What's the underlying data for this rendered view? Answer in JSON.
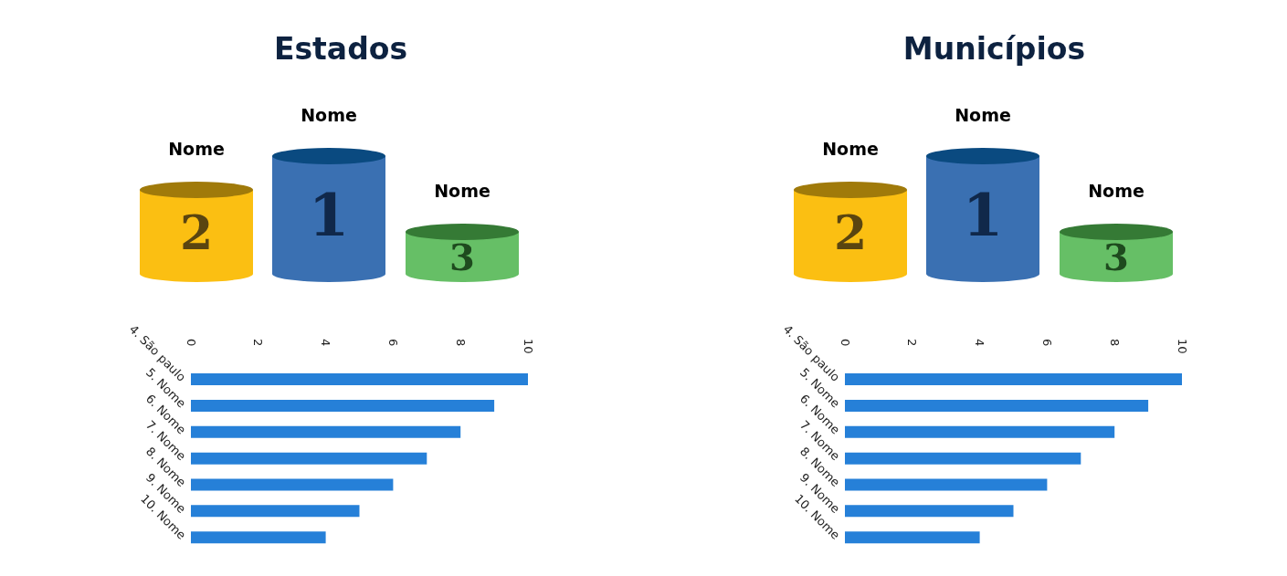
{
  "chart_data": [
    {
      "type": "bar",
      "orientation": "horizontal",
      "title": "Estados",
      "annotations": [
        "Nome",
        "Nome",
        "Nome",
        "2",
        "1",
        "3"
      ],
      "categories": [
        "4. São paulo",
        "5. Nome",
        "6. Nome",
        "7. Nome",
        "8. Nome",
        "9. Nome",
        "10. Nome"
      ],
      "values": [
        10,
        9,
        8,
        7,
        6,
        5,
        4
      ],
      "color": "#2680d8",
      "xlim": [
        0,
        10
      ],
      "xticks": [
        0,
        2,
        4,
        6,
        8,
        10
      ],
      "grid": false,
      "legend": false
    },
    {
      "type": "bar",
      "orientation": "horizontal",
      "title": "Municípios",
      "annotations": [
        "Nome",
        "Nome",
        "Nome",
        "2",
        "1",
        "3"
      ],
      "categories": [
        "4. São paulo",
        "5. Nome",
        "6. Nome",
        "7. Nome",
        "8. Nome",
        "9. Nome",
        "10. Nome"
      ],
      "values": [
        10,
        9,
        8,
        7,
        6,
        5,
        4
      ],
      "color": "#2680d8",
      "xlim": [
        0,
        10
      ],
      "xticks": [
        0,
        2,
        4,
        6,
        8,
        10
      ],
      "grid": false,
      "legend": false
    }
  ]
}
